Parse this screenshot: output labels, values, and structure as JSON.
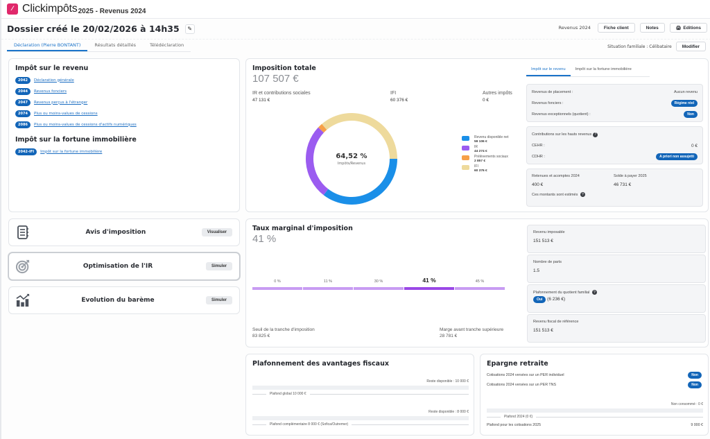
{
  "app": {
    "logo_letter": "⁄",
    "name": "Clickimpôts",
    "subtitle": "2025 - Revenus 2024"
  },
  "header": {
    "title": "Dossier créé le 20/02/2026 à 14h35",
    "edit_icon": "✎",
    "revenus_label": "Revenus 2024",
    "fiche_client": "Fiche client",
    "notes": "Notes",
    "editions_icon": "🖨",
    "editions": "Editions"
  },
  "tabs": [
    {
      "label": "Déclaration (Pierre BONTANT)",
      "active": true
    },
    {
      "label": "Résultats détaillés",
      "active": false
    },
    {
      "label": "Télédéclaration",
      "active": false
    }
  ],
  "situation": {
    "label": "Situation familiale : Célibataire",
    "modifier": "Modifier"
  },
  "declarations": {
    "ir_title": "Impôt sur le revenu",
    "ir_items": [
      {
        "code": "2042",
        "label": "Déclaration générale"
      },
      {
        "code": "2044",
        "label": "Revenus fonciers"
      },
      {
        "code": "2047",
        "label": "Revenus perçus à l'étranger"
      },
      {
        "code": "2074",
        "label": "Plus ou moins-values de cessions"
      },
      {
        "code": "2086",
        "label": "Plus ou moins-values de cessions d'actifs numériques"
      }
    ],
    "ifi_title": "Impôt sur la fortune immobilière",
    "ifi_items": [
      {
        "code": "2042-IFI",
        "label": "Impôt sur la fortune immobilière"
      }
    ]
  },
  "actions": [
    {
      "title": "Avis d'imposition",
      "button": "Visualiser",
      "icon": "notebook-icon"
    },
    {
      "title": "Optimisation de l'IR",
      "button": "Simuler",
      "icon": "target-icon"
    },
    {
      "title": "Evolution du barème",
      "button": "Simuler",
      "icon": "chart-growth-icon"
    }
  ],
  "imposition": {
    "title": "Imposition totale",
    "total": "107 507 €",
    "stats": [
      {
        "label": "IR et contributions sociales",
        "value": "47 131 €"
      },
      {
        "label": "IFI",
        "value": "60 376 €"
      },
      {
        "label": "Autres impôts",
        "value": "0 €"
      }
    ],
    "side_tabs": [
      {
        "label": "Impôt sur le revenu",
        "active": true
      },
      {
        "label": "Impôt sur la fortune immobilière",
        "active": false
      }
    ],
    "panel1": [
      {
        "label": "Revenus de placement :",
        "value": "Aucun revenu",
        "pill": false
      },
      {
        "label": "Revenus fonciers :",
        "value": "Régime réel",
        "pill": true
      },
      {
        "label": "Revenus exceptionnels (quotient) :",
        "value": "Non",
        "pill": true
      }
    ],
    "panel2": {
      "title": "Contributions sur les hauts revenus",
      "help_icon": "?",
      "rows": [
        {
          "label": "CEHR :",
          "value": "0 €",
          "pill": false
        },
        {
          "label": "CDHR :",
          "value": "A priori non assujetti",
          "pill": true
        }
      ]
    },
    "panel3": {
      "retenues_label": "Retenues et acomptes 2024",
      "retenues_value": "400 €",
      "solde_label": "Solde à payer 2025",
      "solde_value": "46 731 €",
      "note": "Ces montants sont estimés"
    }
  },
  "chart_data": {
    "type": "pie",
    "title": "Imposition totale",
    "center_value": "64,52 %",
    "center_label": "Impôts/Revenus",
    "legend_position": "right",
    "slices": [
      {
        "name": "Revenu disponible net",
        "value": 59106,
        "label": "59 106 €",
        "color": "#1a8fe8"
      },
      {
        "name": "IR",
        "value": 44274,
        "label": "44 274 €",
        "color": "#9b5cf0"
      },
      {
        "name": "Prélèvements sociaux",
        "value": 2857,
        "label": "2 857 €",
        "color": "#f6a048"
      },
      {
        "name": "IFI",
        "value": 60376,
        "label": "60 376 €",
        "color": "#eeda9c"
      }
    ]
  },
  "taux": {
    "title": "Taux marginal d'imposition",
    "value": "41 %",
    "tranches": [
      {
        "label": "0 %",
        "active": false
      },
      {
        "label": "11 %",
        "active": false
      },
      {
        "label": "30 %",
        "active": false
      },
      {
        "label": "41 %",
        "active": true
      },
      {
        "label": "45 %",
        "active": false
      }
    ],
    "seuil_label": "Seuil de la tranche d'imposition",
    "seuil_value": "83 825 €",
    "marge_label": "Marge avant tranche supérieure",
    "marge_value": "28 781 €",
    "revenu_imposable_label": "Revenu imposable",
    "revenu_imposable_value": "151 513 €",
    "parts_label": "Nombre de parts",
    "parts_value": "1.5",
    "plafonnement_label": "Plafonnement du quotient familial",
    "plafonnement_pill": "Oui",
    "plafonnement_value": "(6 236 €)",
    "rfr_label": "Revenu fiscal de référence",
    "rfr_value": "151 513 €"
  },
  "plafonnement": {
    "title": "Plafonnement des avantages fiscaux",
    "global_reste": "Reste disponible : 10 000 €",
    "global_label": "Plafond global 10 000 €",
    "global_used": 0,
    "compl_reste": "Reste disponible : 8 000 €",
    "compl_label": "Plafond complémentaire 8 000 € (Sofica/Outremer)",
    "compl_used": 0
  },
  "epargne": {
    "title": "Epargne retraite",
    "rows": [
      {
        "label": "Cotisations 2024 versées sur un PER individuel",
        "value": "Non"
      },
      {
        "label": "Cotisations 2024 versées sur un PER TNS",
        "value": "Non"
      }
    ],
    "non_consomme": "Non consommé : 0 €",
    "plafond_label": "Plafond 2024 (0 €)",
    "plafond_2025_label": "Plafond pour les cotisations 2025",
    "plafond_2025_value": "9 000 €"
  },
  "colors": {
    "accent": "#1265b8",
    "tab_active": "#1a73c9",
    "tranche": "#c89cf2",
    "tranche_active": "#9a48e6",
    "logo": "#e0286b"
  }
}
